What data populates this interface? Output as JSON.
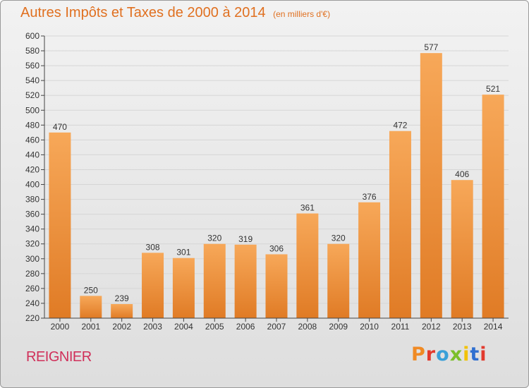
{
  "header": {
    "title": "Autres Impôts et Taxes de 2000 à 2014",
    "unit": "(en milliers d'€)"
  },
  "footer": {
    "commune": "REIGNIER",
    "brand": "Proxiti",
    "brand_colors": [
      "#f08a24",
      "#e23a2e",
      "#3aa0d8",
      "#7bbf2a",
      "#f2c200",
      "#2f6fd0",
      "#e23a2e"
    ]
  },
  "colors": {
    "title": "#e07020",
    "commune": "#d0305a",
    "bar_light": "#f7a859",
    "bar_dark": "#e07b25",
    "grid": "#d6d6d6",
    "axis": "#444444"
  },
  "chart_data": {
    "type": "bar",
    "title": "Autres Impôts et Taxes de 2000 à 2014",
    "xlabel": "",
    "ylabel": "",
    "categories": [
      "2000",
      "2001",
      "2002",
      "2003",
      "2004",
      "2005",
      "2006",
      "2007",
      "2008",
      "2009",
      "2010",
      "2011",
      "2012",
      "2013",
      "2014"
    ],
    "values": [
      470,
      250,
      239,
      308,
      301,
      320,
      319,
      306,
      361,
      320,
      376,
      472,
      577,
      406,
      521
    ],
    "ylim": [
      220,
      600
    ],
    "ytick_step": 20,
    "grid": true,
    "data_labels": true
  }
}
